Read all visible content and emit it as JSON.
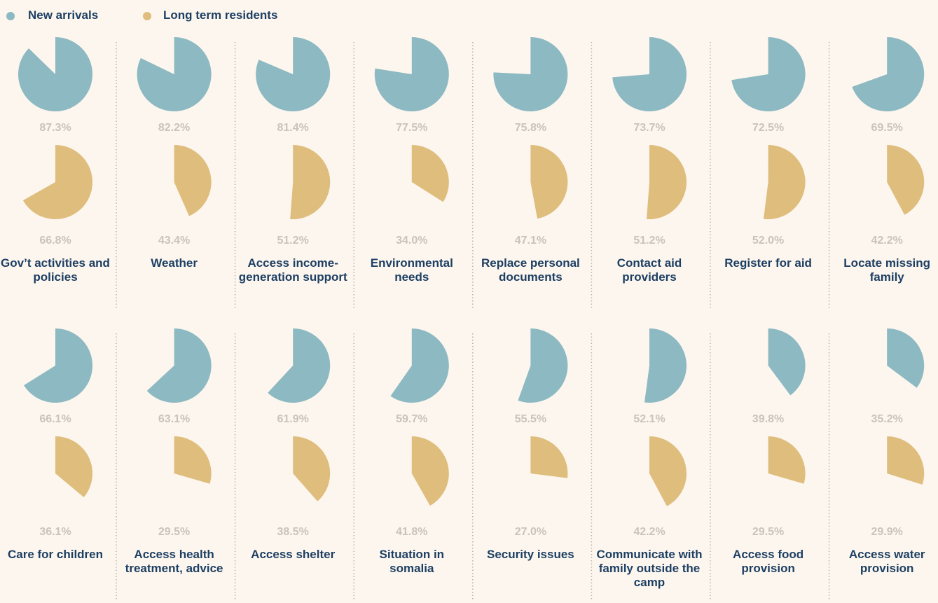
{
  "chart_data": {
    "type": "pie",
    "categories": [
      "Gov’t activities and policies",
      "Weather",
      "Access income-generation support",
      "Environmental needs",
      "Replace personal documents",
      "Contact aid providers",
      "Register for aid",
      "Locate missing family",
      "Care for children",
      "Access health treatment, advice",
      "Access shelter",
      "Situation in somalia",
      "Security issues",
      "Communicate with family outside the camp",
      "Access food provision",
      "Access water provision"
    ],
    "series": [
      {
        "name": "New arrivals",
        "color": "#8db9c2",
        "values": [
          87.3,
          82.2,
          81.4,
          77.5,
          75.8,
          73.7,
          72.5,
          69.5,
          66.1,
          63.1,
          61.9,
          59.7,
          55.5,
          52.1,
          39.8,
          35.2
        ],
        "value_labels": [
          "87.3%",
          "82.2%",
          "81.4%",
          "77.5%",
          "75.8%",
          "73.7%",
          "72.5%",
          "69.5%",
          "66.1%",
          "63.1%",
          "61.9%",
          "59.7%",
          "55.5%",
          "52.1%",
          "39.8%",
          "35.2%"
        ]
      },
      {
        "name": "Long term residents",
        "color": "#dfbd7d",
        "values": [
          66.8,
          43.4,
          51.2,
          34.0,
          47.1,
          51.2,
          52.0,
          42.2,
          36.1,
          29.5,
          38.5,
          41.8,
          27.0,
          42.2,
          29.5,
          29.9
        ],
        "value_labels": [
          "66.8%",
          "43.4%",
          "51.2%",
          "34.0%",
          "47.1%",
          "51.2%",
          "52.0%",
          "42.2%",
          "36.1%",
          "29.5%",
          "38.5%",
          "41.8%",
          "27.0%",
          "42.2%",
          "29.5%",
          "29.9%"
        ]
      }
    ]
  }
}
